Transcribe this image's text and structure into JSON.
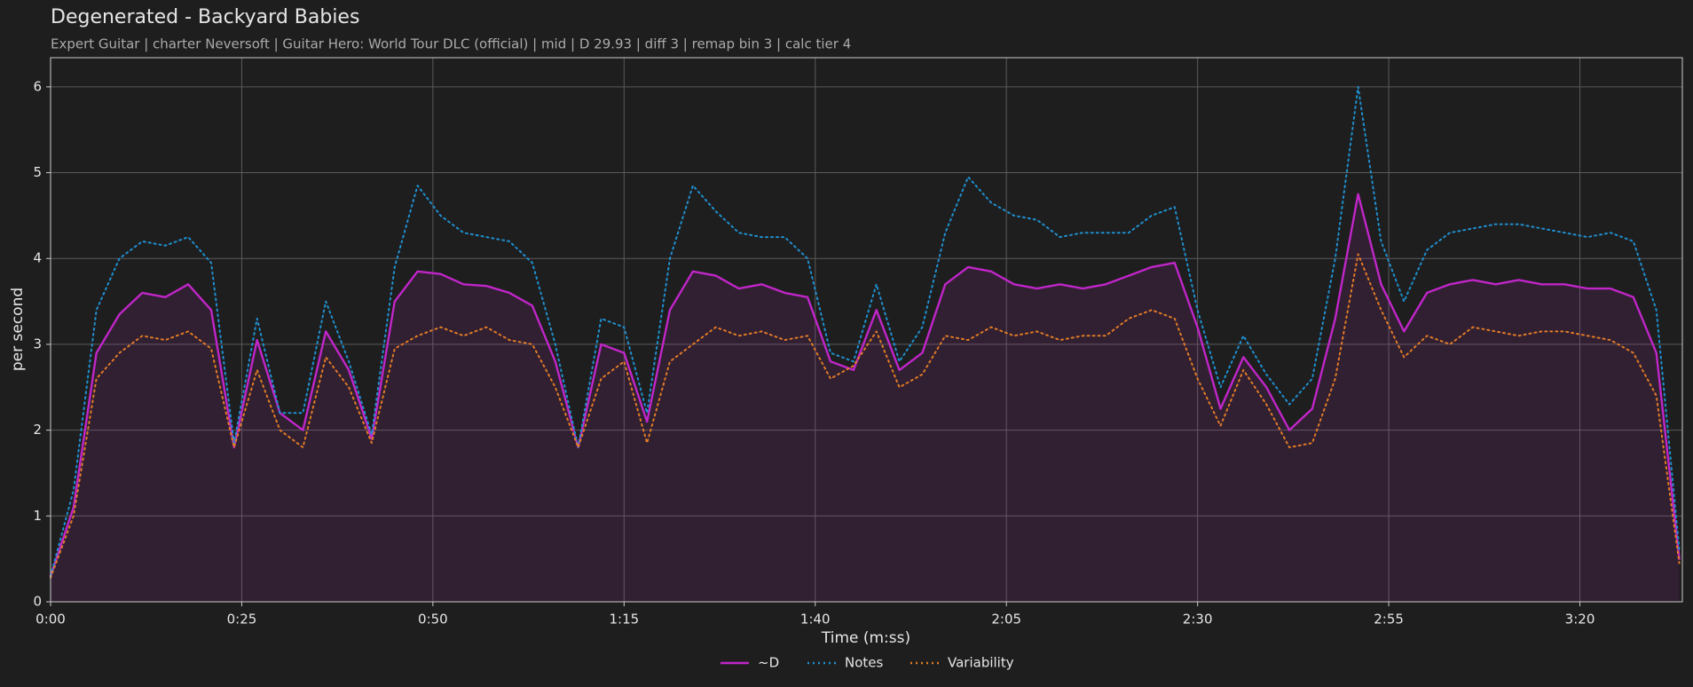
{
  "chart_data": {
    "type": "line",
    "title": "Degenerated - Backyard Babies",
    "subtitle": "Expert Guitar  |  charter Neversoft  |  Guitar Hero: World Tour DLC (official)  |  mid  |  D 29.93  |  diff 3  |  remap bin 3  |  calc tier 4",
    "x_label": "Time (m:ss)",
    "y_label": "per second",
    "xlim": [
      0,
      213.4
    ],
    "ylim": [
      0,
      6.34
    ],
    "xticks": [
      {
        "value": 0,
        "label": "0:00"
      },
      {
        "value": 25,
        "label": "0:25"
      },
      {
        "value": 50,
        "label": "0:50"
      },
      {
        "value": 75,
        "label": "1:15"
      },
      {
        "value": 100,
        "label": "1:40"
      },
      {
        "value": 125,
        "label": "2:05"
      },
      {
        "value": 150,
        "label": "2:30"
      },
      {
        "value": 175,
        "label": "2:55"
      },
      {
        "value": 200,
        "label": "3:20"
      }
    ],
    "yticks": [
      0,
      1,
      2,
      3,
      4,
      5,
      6
    ],
    "grid": true,
    "legend": "bottom",
    "x": [
      0,
      3,
      6,
      9,
      12,
      15,
      18,
      21,
      24,
      27,
      30,
      33,
      36,
      39,
      42,
      45,
      48,
      51,
      54,
      57,
      60,
      63,
      66,
      69,
      72,
      75,
      78,
      81,
      84,
      87,
      90,
      93,
      96,
      99,
      102,
      105,
      108,
      111,
      114,
      117,
      120,
      123,
      126,
      129,
      132,
      135,
      138,
      141,
      144,
      147,
      150,
      153,
      156,
      159,
      162,
      165,
      168,
      171,
      174,
      177,
      180,
      183,
      186,
      189,
      192,
      195,
      198,
      201,
      204,
      207,
      210,
      213
    ],
    "series": [
      {
        "name": "~D",
        "color": "#c026c8",
        "style": "solid",
        "fill": true,
        "values": [
          0.3,
          1.1,
          2.9,
          3.35,
          3.6,
          3.55,
          3.7,
          3.4,
          1.8,
          3.05,
          2.2,
          2.0,
          3.15,
          2.7,
          1.9,
          3.5,
          3.85,
          3.82,
          3.7,
          3.68,
          3.6,
          3.45,
          2.8,
          1.8,
          3.0,
          2.9,
          2.1,
          3.4,
          3.85,
          3.8,
          3.65,
          3.7,
          3.6,
          3.55,
          2.8,
          2.7,
          3.4,
          2.7,
          2.9,
          3.7,
          3.9,
          3.85,
          3.7,
          3.65,
          3.7,
          3.65,
          3.7,
          3.8,
          3.9,
          3.95,
          3.2,
          2.25,
          2.85,
          2.5,
          2.0,
          2.25,
          3.3,
          4.75,
          3.7,
          3.15,
          3.6,
          3.7,
          3.75,
          3.7,
          3.75,
          3.7,
          3.7,
          3.65,
          3.65,
          3.55,
          2.9,
          0.5
        ]
      },
      {
        "name": "Notes",
        "color": "#1f8fcf",
        "style": "dotted",
        "values": [
          0.3,
          1.3,
          3.4,
          4.0,
          4.2,
          4.15,
          4.25,
          3.95,
          1.85,
          3.3,
          2.2,
          2.2,
          3.5,
          2.8,
          1.95,
          3.9,
          4.85,
          4.5,
          4.3,
          4.25,
          4.2,
          3.95,
          3.0,
          1.8,
          3.3,
          3.2,
          2.2,
          4.0,
          4.85,
          4.55,
          4.3,
          4.25,
          4.25,
          4.0,
          2.9,
          2.8,
          3.7,
          2.8,
          3.2,
          4.3,
          4.95,
          4.65,
          4.5,
          4.45,
          4.25,
          4.3,
          4.3,
          4.3,
          4.5,
          4.6,
          3.4,
          2.5,
          3.1,
          2.65,
          2.3,
          2.6,
          4.0,
          6.0,
          4.2,
          3.5,
          4.1,
          4.3,
          4.35,
          4.4,
          4.4,
          4.35,
          4.3,
          4.25,
          4.3,
          4.2,
          3.4,
          0.6
        ]
      },
      {
        "name": "Variability",
        "color": "#e07b25",
        "style": "dotted",
        "values": [
          0.28,
          1.0,
          2.6,
          2.9,
          3.1,
          3.05,
          3.15,
          2.95,
          1.8,
          2.7,
          2.0,
          1.8,
          2.85,
          2.5,
          1.85,
          2.95,
          3.1,
          3.2,
          3.1,
          3.2,
          3.05,
          3.0,
          2.5,
          1.8,
          2.6,
          2.8,
          1.85,
          2.8,
          3.0,
          3.2,
          3.1,
          3.15,
          3.05,
          3.1,
          2.6,
          2.75,
          3.15,
          2.5,
          2.65,
          3.1,
          3.05,
          3.2,
          3.1,
          3.15,
          3.05,
          3.1,
          3.1,
          3.3,
          3.4,
          3.3,
          2.6,
          2.05,
          2.7,
          2.3,
          1.8,
          1.85,
          2.6,
          4.05,
          3.4,
          2.85,
          3.1,
          3.0,
          3.2,
          3.15,
          3.1,
          3.15,
          3.15,
          3.1,
          3.05,
          2.9,
          2.4,
          0.45
        ]
      }
    ]
  }
}
